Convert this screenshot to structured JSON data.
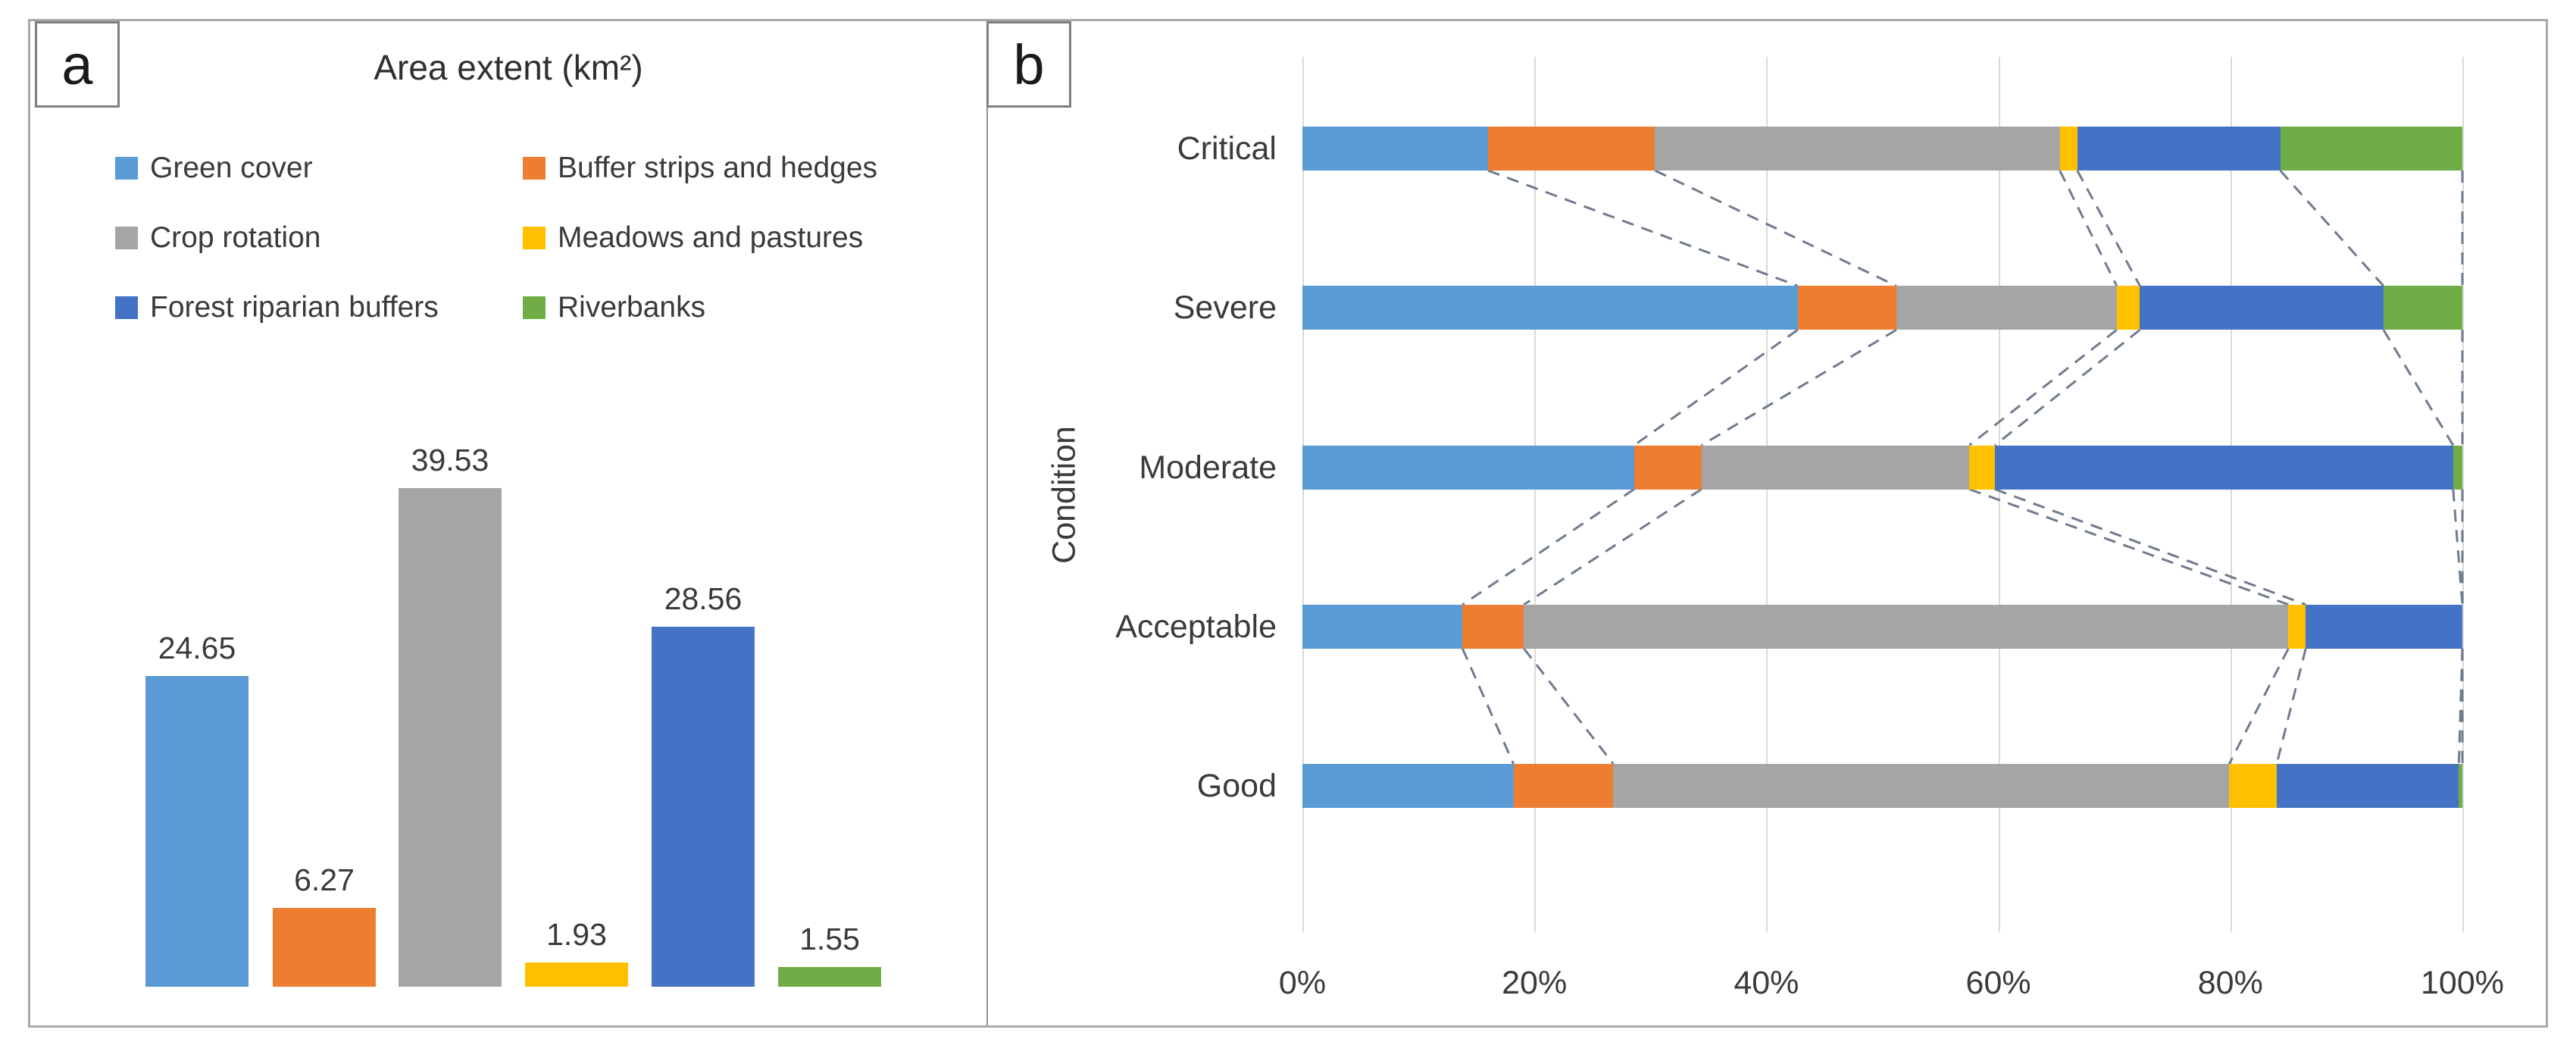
{
  "panel_a": {
    "label": "a",
    "title": "Area extent (km²)"
  },
  "panel_b": {
    "label": "b",
    "ylabel": "Condition",
    "categories": [
      "Critical",
      "Severe",
      "Moderate",
      "Acceptable",
      "Good"
    ],
    "x_ticks": [
      "0%",
      "20%",
      "40%",
      "60%",
      "80%",
      "100%"
    ]
  },
  "colors": {
    "green_cover": "#5B9BD5",
    "buffer_strips_and_hedges": "#ED7D31",
    "crop_rotation": "#A5A5A5",
    "meadows_and_pastures": "#FFC000",
    "forest_riparian_buffers": "#4472C4",
    "riverbanks": "#70AD47",
    "gridline": "#D9D9D9",
    "series_line": "#6F7B8E",
    "text": "#3A3A3A",
    "border": "#A8A8A8"
  },
  "chart_data": [
    {
      "panel": "a",
      "type": "bar",
      "title": "Area extent (km²)",
      "categories": [
        "Green cover",
        "Buffer strips and hedges",
        "Crop rotation",
        "Meadows and pastures",
        "Forest riparian buffers",
        "Riverbanks"
      ],
      "values": [
        24.65,
        6.27,
        39.53,
        1.93,
        28.56,
        1.55
      ],
      "colors": [
        "#5B9BD5",
        "#ED7D31",
        "#A5A5A5",
        "#FFC000",
        "#4472C4",
        "#70AD47"
      ],
      "data_labels": [
        "24.65",
        "6.27",
        "39.53",
        "1.93",
        "28.56",
        "1.55"
      ],
      "legend_position": "top",
      "legend_columns": 2,
      "y_axis_visible": false,
      "ylim": [
        0,
        44
      ]
    },
    {
      "panel": "b",
      "type": "stacked_bar_horizontal_percent",
      "categories": [
        "Critical",
        "Severe",
        "Moderate",
        "Acceptable",
        "Good"
      ],
      "series": [
        {
          "name": "Green cover",
          "color": "#5B9BD5",
          "values": [
            16.0,
            42.7,
            28.6,
            13.8,
            18.2
          ]
        },
        {
          "name": "Buffer strips and hedges",
          "color": "#ED7D31",
          "values": [
            14.4,
            8.5,
            5.8,
            5.3,
            8.6
          ]
        },
        {
          "name": "Crop rotation",
          "color": "#A5A5A5",
          "values": [
            34.9,
            19.0,
            23.1,
            65.9,
            53.1
          ]
        },
        {
          "name": "Meadows and pastures",
          "color": "#FFC000",
          "values": [
            1.5,
            2.0,
            2.2,
            1.5,
            4.1
          ]
        },
        {
          "name": "Forest riparian buffers",
          "color": "#4472C4",
          "values": [
            17.5,
            21.0,
            39.5,
            13.5,
            15.7
          ]
        },
        {
          "name": "Riverbanks",
          "color": "#70AD47",
          "values": [
            15.7,
            6.8,
            0.8,
            0.0,
            0.3
          ]
        }
      ],
      "ylabel": "Condition",
      "xlabel": "",
      "x_ticks": [
        "0%",
        "20%",
        "40%",
        "60%",
        "80%",
        "100%"
      ],
      "xlim": [
        0,
        100
      ],
      "units": "%",
      "grid": true,
      "series_lines_dashed": true
    }
  ]
}
